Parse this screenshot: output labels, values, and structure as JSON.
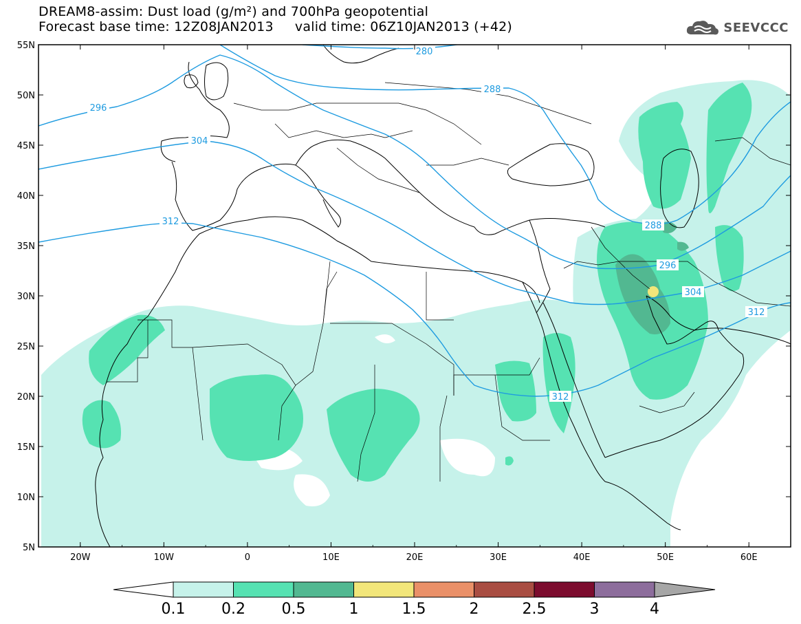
{
  "header": {
    "title_line1": "DREAM8-assim: Dust load (g/m²) and 700hPa geopotential",
    "title_line2": "Forecast base time: 12Z08JAN2013     valid time: 06Z10JAN2013 (+42)"
  },
  "logo": {
    "text": "SEEVCCC",
    "icon": "cloud-icon"
  },
  "map": {
    "lon_range": [
      -25,
      65
    ],
    "lat_range": [
      5,
      55
    ],
    "lon_ticks": [
      "20W",
      "10W",
      "0",
      "10E",
      "20E",
      "30E",
      "40E",
      "50E",
      "60E"
    ],
    "lat_ticks": [
      "5N",
      "10N",
      "15N",
      "20N",
      "25N",
      "30N",
      "35N",
      "40N",
      "45N",
      "50N",
      "55N"
    ],
    "contour_labels": [
      "280",
      "288",
      "296",
      "304",
      "312",
      "288",
      "296",
      "304",
      "312",
      "312"
    ],
    "contour_color": "#1e9be0"
  },
  "colorbar": {
    "levels": [
      "0.1",
      "0.2",
      "0.5",
      "1",
      "1.5",
      "2",
      "2.5",
      "3",
      "4"
    ],
    "colors": [
      "#c6f2ea",
      "#56e2b2",
      "#52b891",
      "#f2e67a",
      "#ea9068",
      "#a94d42",
      "#7c0c2e",
      "#8d6d9c"
    ],
    "under_color": "#ffffff",
    "over_color": "#a6a6a6"
  }
}
